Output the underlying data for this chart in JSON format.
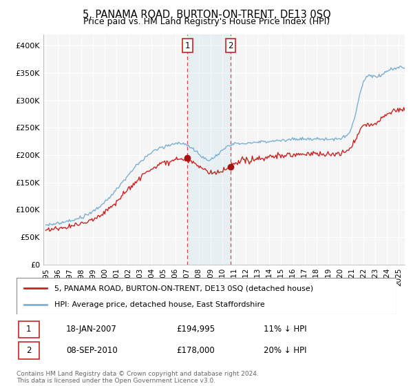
{
  "title": "5, PANAMA ROAD, BURTON-ON-TRENT, DE13 0SQ",
  "subtitle": "Price paid vs. HM Land Registry's House Price Index (HPI)",
  "legend_line1": "5, PANAMA ROAD, BURTON-ON-TRENT, DE13 0SQ (detached house)",
  "legend_line2": "HPI: Average price, detached house, East Staffordshire",
  "transaction1_date": "18-JAN-2007",
  "transaction1_price": "£194,995",
  "transaction1_hpi": "11% ↓ HPI",
  "transaction1_x": 2007.05,
  "transaction1_y": 194995,
  "transaction2_date": "08-SEP-2010",
  "transaction2_price": "£178,000",
  "transaction2_hpi": "20% ↓ HPI",
  "transaction2_x": 2010.72,
  "transaction2_y": 178000,
  "footnote": "Contains HM Land Registry data © Crown copyright and database right 2024.\nThis data is licensed under the Open Government Licence v3.0.",
  "hpi_color": "#7bafd4",
  "price_color": "#cc2222",
  "marker_color": "#aa1111",
  "ylim": [
    0,
    420000
  ],
  "xlim_start": 1994.8,
  "xlim_end": 2025.5,
  "background_color": "#f5f5f5"
}
